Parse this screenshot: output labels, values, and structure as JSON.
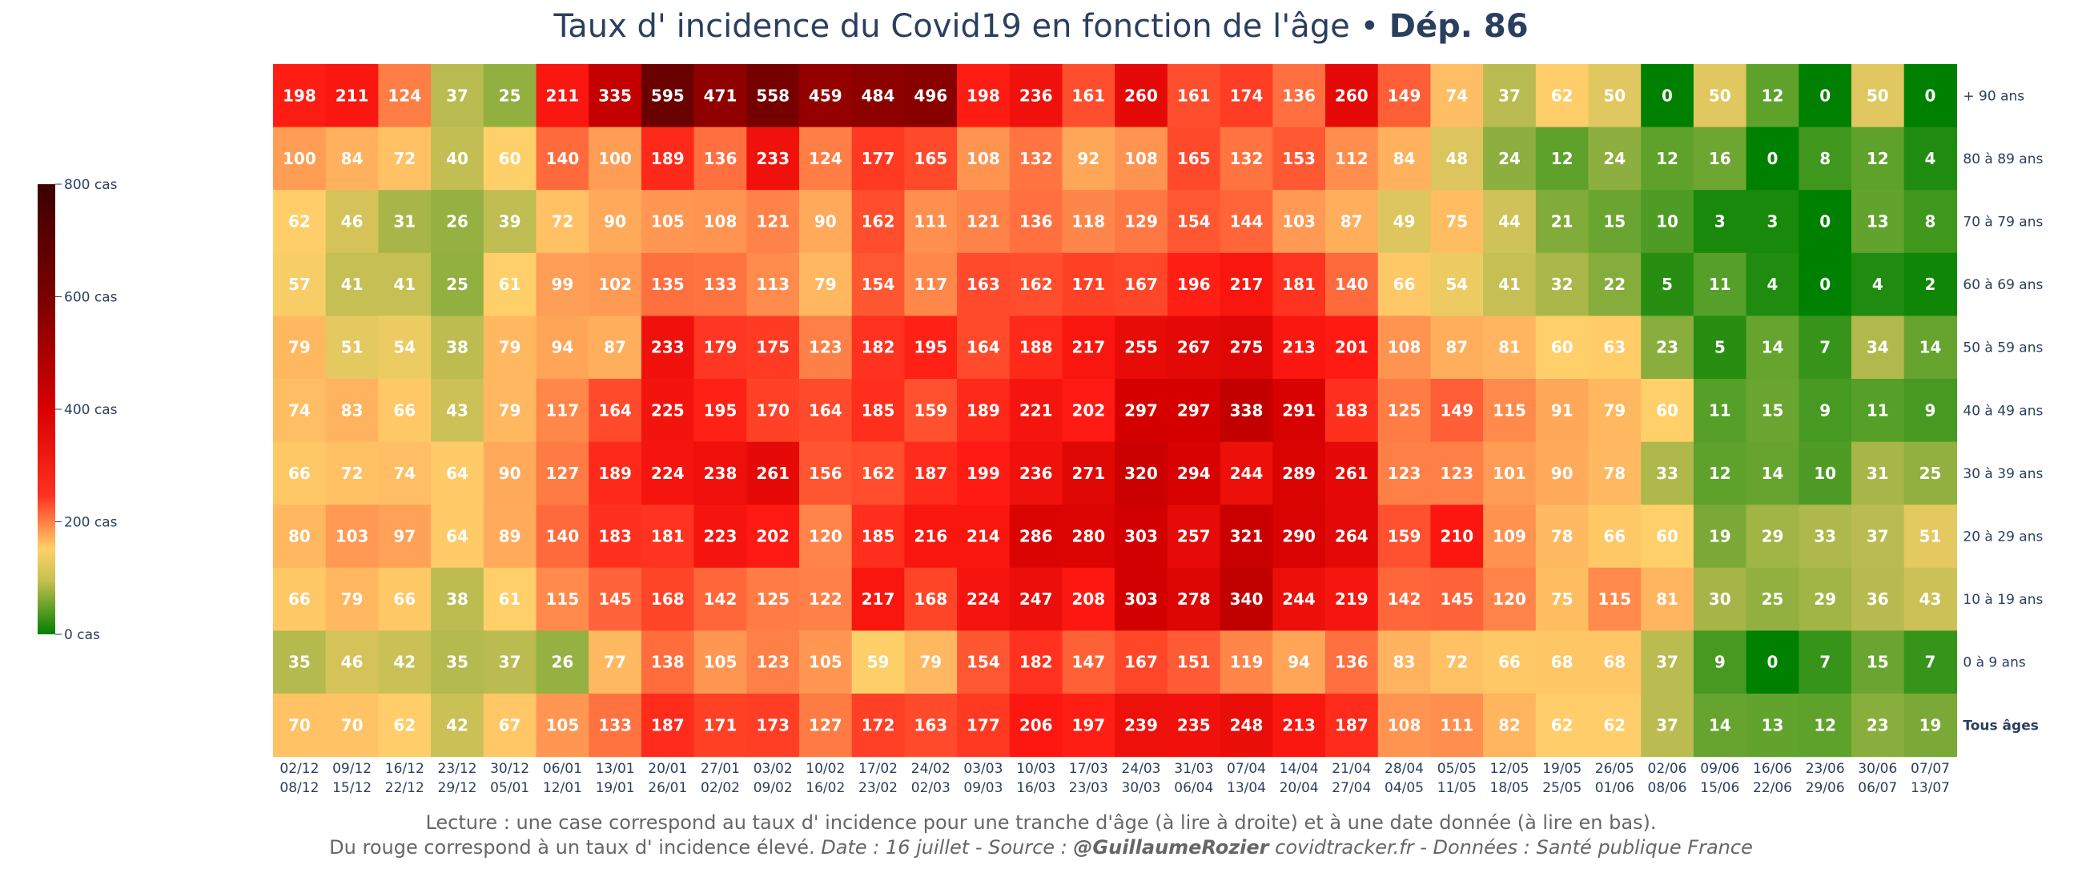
{
  "title": {
    "main": "Taux d' incidence du Covid19 en fonction de l'âge • ",
    "dept": "Dép. 86"
  },
  "footer": {
    "line1": "Lecture : une case correspond au taux d' incidence pour une tranche d'âge (à lire à droite) et à une date donnée (à lire en bas).",
    "line2_plain": "Du rouge correspond à un taux d' incidence élevé.  ",
    "line2_italic_a": "Date : 16 juillet - Source : ",
    "line2_bold": "@GuillaumeRozier",
    "line2_italic_b": " covidtracker.fr - Données : Santé publique France"
  },
  "colors": {
    "scale": [
      "#008000",
      "#ffd06a",
      "#ff0000",
      "#9a0000",
      "#3d0000"
    ],
    "text": "#ffffff",
    "axis_text": "#2a3f5f"
  },
  "chart_data": {
    "type": "heatmap",
    "x": [
      "02/12\n08/12",
      "09/12\n15/12",
      "16/12\n22/12",
      "23/12\n29/12",
      "30/12\n05/01",
      "06/01\n12/01",
      "13/01\n19/01",
      "20/01\n26/01",
      "27/01\n02/02",
      "03/02\n09/02",
      "10/02\n16/02",
      "17/02\n23/02",
      "24/02\n02/03",
      "03/03\n09/03",
      "10/03\n16/03",
      "17/03\n23/03",
      "24/03\n30/03",
      "31/03\n06/04",
      "07/04\n13/04",
      "14/04\n20/04",
      "21/04\n27/04",
      "28/04\n04/05",
      "05/05\n11/05",
      "12/05\n18/05",
      "19/05\n25/05",
      "26/05\n01/06",
      "02/06\n08/06",
      "09/06\n15/06",
      "16/06\n22/06",
      "23/06\n29/06",
      "30/06\n06/07",
      "07/07\n13/07"
    ],
    "y": [
      "+ 90 ans",
      "80 à 89 ans",
      "70 à 79 ans",
      "60 à 69 ans",
      "50 à 59 ans",
      "40 à 49 ans",
      "30 à 39 ans",
      "20 à 29 ans",
      "10 à 19 ans",
      "0 à 9 ans",
      "Tous âges"
    ],
    "y_bold": [
      false,
      false,
      false,
      false,
      false,
      false,
      false,
      false,
      false,
      false,
      true
    ],
    "z": [
      [
        198,
        211,
        124,
        37,
        25,
        211,
        335,
        595,
        471,
        558,
        459,
        484,
        496,
        198,
        236,
        161,
        260,
        161,
        174,
        136,
        260,
        149,
        74,
        37,
        62,
        50,
        0,
        50,
        12,
        0,
        50,
        0
      ],
      [
        100,
        84,
        72,
        40,
        60,
        140,
        100,
        189,
        136,
        233,
        124,
        177,
        165,
        108,
        132,
        92,
        108,
        165,
        132,
        153,
        112,
        84,
        48,
        24,
        12,
        24,
        12,
        16,
        0,
        8,
        12,
        4
      ],
      [
        62,
        46,
        31,
        26,
        39,
        72,
        90,
        105,
        108,
        121,
        90,
        162,
        111,
        121,
        136,
        118,
        129,
        154,
        144,
        103,
        87,
        49,
        75,
        44,
        21,
        15,
        10,
        3,
        3,
        0,
        13,
        8
      ],
      [
        57,
        41,
        41,
        25,
        61,
        99,
        102,
        135,
        133,
        113,
        79,
        154,
        117,
        163,
        162,
        171,
        167,
        196,
        217,
        181,
        140,
        66,
        54,
        41,
        32,
        22,
        5,
        11,
        4,
        0,
        4,
        2
      ],
      [
        79,
        51,
        54,
        38,
        79,
        94,
        87,
        233,
        179,
        175,
        123,
        182,
        195,
        164,
        188,
        217,
        255,
        267,
        275,
        213,
        201,
        108,
        87,
        81,
        60,
        63,
        23,
        5,
        14,
        7,
        34,
        14
      ],
      [
        74,
        83,
        66,
        43,
        79,
        117,
        164,
        225,
        195,
        170,
        164,
        185,
        159,
        189,
        221,
        202,
        297,
        297,
        338,
        291,
        183,
        125,
        149,
        115,
        91,
        79,
        60,
        11,
        15,
        9,
        11,
        9
      ],
      [
        66,
        72,
        74,
        64,
        90,
        127,
        189,
        224,
        238,
        261,
        156,
        162,
        187,
        199,
        236,
        271,
        320,
        294,
        244,
        289,
        261,
        123,
        123,
        101,
        90,
        78,
        33,
        12,
        14,
        10,
        31,
        25
      ],
      [
        80,
        103,
        97,
        64,
        89,
        140,
        183,
        181,
        223,
        202,
        120,
        185,
        216,
        214,
        286,
        280,
        303,
        257,
        321,
        290,
        264,
        159,
        210,
        109,
        78,
        66,
        60,
        19,
        29,
        33,
        37,
        51
      ],
      [
        66,
        79,
        66,
        38,
        61,
        115,
        145,
        168,
        142,
        125,
        122,
        217,
        168,
        224,
        247,
        208,
        303,
        278,
        340,
        244,
        219,
        142,
        145,
        120,
        75,
        115,
        81,
        30,
        25,
        29,
        36,
        43
      ],
      [
        35,
        46,
        42,
        35,
        37,
        26,
        77,
        138,
        105,
        123,
        105,
        59,
        79,
        154,
        182,
        147,
        167,
        151,
        119,
        94,
        136,
        83,
        72,
        66,
        68,
        68,
        37,
        9,
        0,
        7,
        15,
        7
      ],
      [
        70,
        70,
        62,
        42,
        67,
        105,
        133,
        187,
        171,
        173,
        127,
        172,
        163,
        177,
        206,
        197,
        239,
        235,
        248,
        213,
        187,
        108,
        111,
        82,
        62,
        62,
        37,
        14,
        13,
        12,
        23,
        19
      ]
    ],
    "zmin": 0,
    "zmax": 800,
    "colorbar": {
      "ticks": [
        0,
        200,
        400,
        600,
        800
      ],
      "tick_labels": [
        "0 cas",
        "200 cas",
        "400 cas",
        "600 cas",
        "800 cas"
      ],
      "placement": "left"
    }
  }
}
